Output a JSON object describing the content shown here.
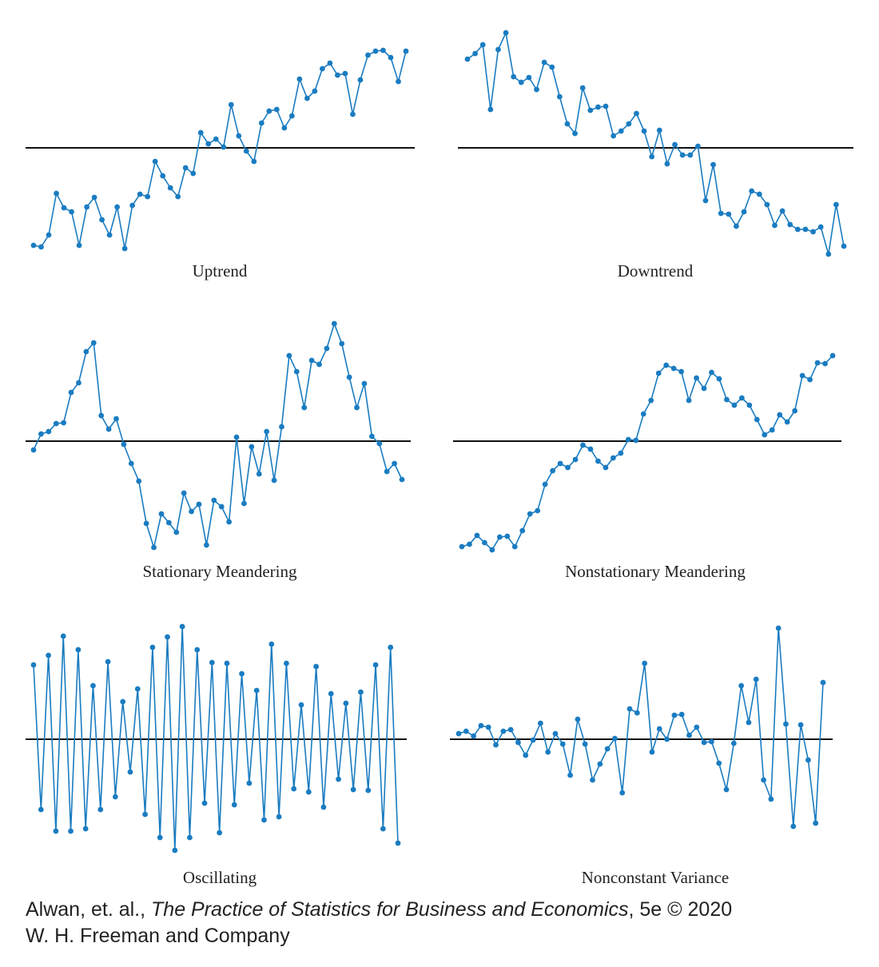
{
  "chart_data": [
    {
      "type": "line",
      "title": "Uptrend",
      "color": "#1a7cc1",
      "reference_line": 0,
      "ylim": [
        -150,
        150
      ],
      "values": [
        -122,
        -124,
        -109,
        -57,
        -75,
        -80,
        -122,
        -74,
        -62,
        -90,
        -109,
        -74,
        -126,
        -72,
        -58,
        -61,
        -17,
        -35,
        -50,
        -61,
        -25,
        -32,
        19,
        5,
        11,
        1,
        54,
        15,
        -4,
        -17,
        31,
        46,
        48,
        25,
        40,
        86,
        62,
        71,
        99,
        106,
        91,
        93,
        42,
        85,
        116,
        121,
        122,
        113,
        83,
        121
      ]
    },
    {
      "type": "line",
      "title": "Downtrend",
      "color": "#1a7cc1",
      "reference_line": 0,
      "ylim": [
        -150,
        150
      ],
      "values": [
        111,
        118,
        129,
        48,
        123,
        144,
        89,
        82,
        88,
        73,
        107,
        101,
        64,
        30,
        18,
        75,
        47,
        51,
        52,
        15,
        21,
        30,
        43,
        21,
        -11,
        22,
        -20,
        4,
        -9,
        -9,
        2,
        -66,
        -21,
        -82,
        -83,
        -98,
        -80,
        -54,
        -58,
        -71,
        -97,
        -79,
        -96,
        -102,
        -102,
        -105,
        -99,
        -133,
        -71,
        -123
      ]
    },
    {
      "type": "line",
      "title": "Stationary Meandering",
      "color": "#1a7cc1",
      "reference_line": 0,
      "ylim": [
        -150,
        150
      ],
      "values": [
        -11,
        9,
        12,
        22,
        23,
        61,
        73,
        112,
        123,
        32,
        15,
        28,
        -4,
        -28,
        -50,
        -103,
        -133,
        -91,
        -102,
        -114,
        -65,
        -88,
        -79,
        -130,
        -74,
        -82,
        -101,
        5,
        -78,
        -7,
        -41,
        12,
        -49,
        18,
        107,
        87,
        42,
        101,
        96,
        116,
        147,
        122,
        80,
        42,
        72,
        6,
        -3,
        -38,
        -28,
        -48
      ]
    },
    {
      "type": "line",
      "title": "Nonstationary Meandering",
      "color": "#1a7cc1",
      "reference_line": 0,
      "ylim": [
        -150,
        150
      ],
      "values": [
        -132,
        -129,
        -118,
        -127,
        -136,
        -120,
        -119,
        -132,
        -112,
        -91,
        -87,
        -54,
        -37,
        -28,
        -33,
        -23,
        -5,
        -10,
        -25,
        -33,
        -21,
        -15,
        2,
        1,
        34,
        51,
        85,
        95,
        91,
        87,
        51,
        79,
        66,
        86,
        78,
        52,
        45,
        54,
        45,
        27,
        8,
        14,
        33,
        24,
        38,
        82,
        77,
        98,
        97,
        107
      ]
    },
    {
      "type": "line",
      "title": "Oscillating",
      "color": "#1a7cc1",
      "reference_line": 0,
      "ylim": [
        -150,
        150
      ],
      "values": [
        93,
        -88,
        105,
        -115,
        129,
        -115,
        112,
        -112,
        67,
        -88,
        97,
        -72,
        47,
        -41,
        63,
        -94,
        115,
        -123,
        128,
        -139,
        141,
        -123,
        112,
        -80,
        96,
        -117,
        95,
        -82,
        82,
        -55,
        61,
        -101,
        119,
        -97,
        95,
        -62,
        43,
        -66,
        91,
        -85,
        57,
        -50,
        45,
        -63,
        59,
        -64,
        93,
        -112,
        115,
        -130
      ]
    },
    {
      "type": "line",
      "title": "Nonconstant Variance",
      "color": "#1a7cc1",
      "reference_line": 0,
      "ylim": [
        -150,
        150
      ],
      "values": [
        7,
        10,
        4,
        17,
        15,
        -7,
        10,
        12,
        -4,
        -20,
        -1,
        20,
        -16,
        7,
        -6,
        -45,
        25,
        -6,
        -51,
        -31,
        -12,
        1,
        -67,
        38,
        33,
        95,
        -16,
        13,
        0,
        30,
        31,
        5,
        15,
        -4,
        -3,
        -30,
        -63,
        -5,
        67,
        21,
        75,
        -51,
        -75,
        139,
        19,
        -109,
        18,
        -26,
        -105,
        71
      ]
    }
  ],
  "credit": {
    "authors": "Alwan, et. al., ",
    "book": "The Practice of Statistics for Business and Economics",
    "edition": ", 5e © 2020",
    "publisher": "W. H. Freeman and Company"
  }
}
